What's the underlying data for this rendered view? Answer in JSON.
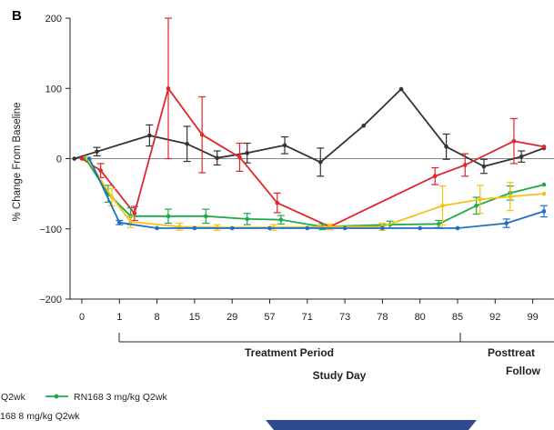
{
  "chart_data": {
    "type": "line",
    "panel_label": "B",
    "ylabel": "% Change From Baseline",
    "xlabel": "Study Day",
    "ylim": [
      -200,
      200
    ],
    "yticks": [
      200,
      100,
      0,
      -100,
      -200
    ],
    "ytick_labels": [
      "200",
      "100",
      "0",
      "−100",
      "−200"
    ],
    "categories": [
      "0",
      "1",
      "8",
      "15",
      "29",
      "57",
      "71",
      "73",
      "78",
      "80",
      "85",
      "92",
      "99"
    ],
    "periods": [
      {
        "label": "Treatment Period",
        "from": "1",
        "to": "85"
      },
      {
        "label": "Posttreat",
        "sublabel": "Follow",
        "from": "85"
      }
    ],
    "series": [
      {
        "name": "",
        "color": "#333333",
        "points": [
          {
            "x": -0.2,
            "y": 0
          },
          {
            "x": 0.4,
            "y": 10,
            "err": 6
          },
          {
            "x": 1.8,
            "y": 33,
            "err": 15
          },
          {
            "x": 2.8,
            "y": 21,
            "err": 25
          },
          {
            "x": 3.6,
            "y": 1,
            "err": 10
          },
          {
            "x": 4.4,
            "y": 8,
            "err": 14
          },
          {
            "x": 5.4,
            "y": 19,
            "err": 12
          },
          {
            "x": 6.35,
            "y": -5,
            "err": 20
          },
          {
            "x": 7.5,
            "y": 47
          },
          {
            "x": 8.5,
            "y": 99
          },
          {
            "x": 9.7,
            "y": 17,
            "err": 18
          },
          {
            "x": 10.7,
            "y": -11,
            "err": 10
          },
          {
            "x": 11.7,
            "y": 3,
            "err": 8
          },
          {
            "x": 12.3,
            "y": 15
          }
        ]
      },
      {
        "name": "",
        "color": "#e0262a",
        "points": [
          {
            "x": 0,
            "y": 0
          },
          {
            "x": 0.5,
            "y": -17,
            "err": 10
          },
          {
            "x": 1.4,
            "y": -78,
            "err": 10
          },
          {
            "x": 2.3,
            "y": 100,
            "err": 100
          },
          {
            "x": 3.2,
            "y": 34,
            "err": 54
          },
          {
            "x": 4.2,
            "y": 2,
            "err": 20
          },
          {
            "x": 5.2,
            "y": -63,
            "err": 14
          },
          {
            "x": 6.6,
            "y": -97
          },
          {
            "x": 9.4,
            "y": -25,
            "err": 12
          },
          {
            "x": 10.2,
            "y": -9,
            "err": 16
          },
          {
            "x": 11.5,
            "y": 25,
            "err": 32
          },
          {
            "x": 12.3,
            "y": 17
          }
        ]
      },
      {
        "name": "RN168 3 mg/kg Q2wk",
        "color": "#1faa4a",
        "points": [
          {
            "x": 0.1,
            "y": 0
          },
          {
            "x": 0.7,
            "y": -50,
            "err": 12
          },
          {
            "x": 1.3,
            "y": -82,
            "err": 12
          },
          {
            "x": 2.3,
            "y": -82,
            "err": 10
          },
          {
            "x": 3.3,
            "y": -82,
            "err": 10
          },
          {
            "x": 4.4,
            "y": -86,
            "err": 8
          },
          {
            "x": 5.3,
            "y": -87,
            "err": 6
          },
          {
            "x": 6.4,
            "y": -97,
            "err": 4
          },
          {
            "x": 8.2,
            "y": -94,
            "err": 5
          },
          {
            "x": 9.5,
            "y": -93,
            "err": 5
          },
          {
            "x": 10.5,
            "y": -67,
            "err": 12
          },
          {
            "x": 11.4,
            "y": -49,
            "err": 10
          },
          {
            "x": 12.3,
            "y": -37
          }
        ]
      },
      {
        "name": "",
        "color": "#f5c216",
        "points": [
          {
            "x": 0.15,
            "y": 0
          },
          {
            "x": 0.8,
            "y": -55,
            "err": 12
          },
          {
            "x": 1.3,
            "y": -90,
            "err": 8
          },
          {
            "x": 2.6,
            "y": -97,
            "err": 5
          },
          {
            "x": 3.6,
            "y": -98,
            "err": 4
          },
          {
            "x": 5.1,
            "y": -98,
            "err": 4
          },
          {
            "x": 6.6,
            "y": -97,
            "err": 4
          },
          {
            "x": 8.0,
            "y": -97,
            "err": 5
          },
          {
            "x": 9.6,
            "y": -67,
            "err": 28
          },
          {
            "x": 10.6,
            "y": -58,
            "err": 20
          },
          {
            "x": 11.4,
            "y": -54,
            "err": 20
          },
          {
            "x": 12.3,
            "y": -50
          }
        ]
      },
      {
        "name": "",
        "color": "#1f6fc5",
        "points": [
          {
            "x": 0.2,
            "y": 0
          },
          {
            "x": 1.0,
            "y": -91,
            "err": 3
          },
          {
            "x": 2.0,
            "y": -99
          },
          {
            "x": 3.0,
            "y": -99
          },
          {
            "x": 4.0,
            "y": -99
          },
          {
            "x": 5.0,
            "y": -99
          },
          {
            "x": 6.0,
            "y": -99
          },
          {
            "x": 7.0,
            "y": -99
          },
          {
            "x": 8.0,
            "y": -99
          },
          {
            "x": 9.0,
            "y": -99
          },
          {
            "x": 10.0,
            "y": -99
          },
          {
            "x": 11.3,
            "y": -92,
            "err": 6
          },
          {
            "x": 12.3,
            "y": -75,
            "err": 8
          }
        ]
      }
    ],
    "legend": [
      {
        "label": "Q2wk",
        "color": "#f5c216",
        "marker": false
      },
      {
        "label": "RN168 3 mg/kg Q2wk",
        "color": "#1faa4a",
        "marker": true
      },
      {
        "label": "168 8 mg/kg Q2wk",
        "color": "#e0262a",
        "marker": false
      }
    ],
    "grid": false,
    "legend_position": "bottom-left"
  },
  "colors": {
    "axis": "#222222",
    "zero_line": "#888888",
    "banner": "#2f4a8e"
  }
}
